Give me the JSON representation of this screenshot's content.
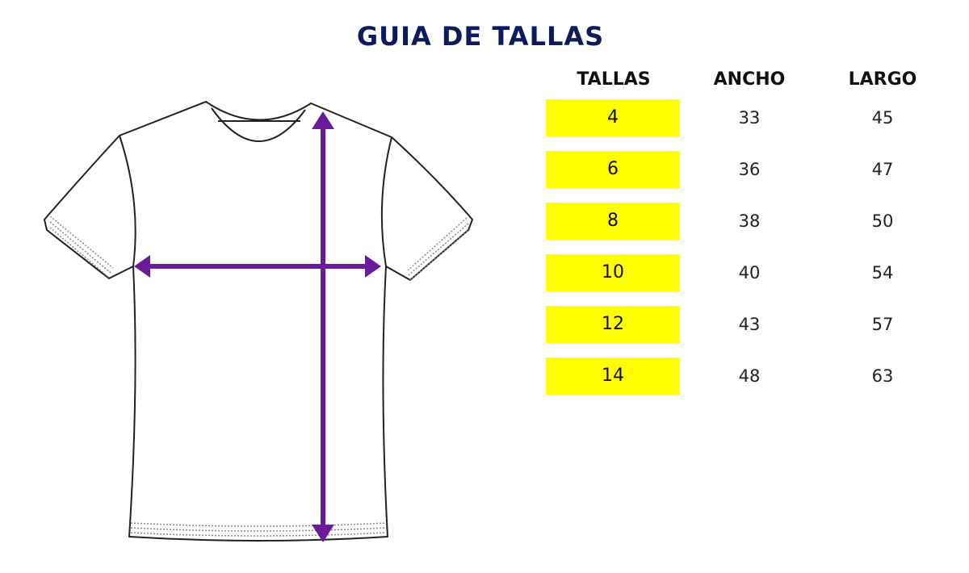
{
  "title": "GUIA DE TALLAS",
  "table": {
    "headers": [
      "TALLAS",
      "ANCHO",
      "LARGO"
    ],
    "rows": [
      {
        "talla": "4",
        "ancho": "33",
        "largo": "45"
      },
      {
        "talla": "6",
        "ancho": "36",
        "largo": "47"
      },
      {
        "talla": "8",
        "ancho": "38",
        "largo": "50"
      },
      {
        "talla": "10",
        "ancho": "40",
        "largo": "54"
      },
      {
        "talla": "12",
        "ancho": "43",
        "largo": "57"
      },
      {
        "talla": "14",
        "ancho": "48",
        "largo": "63"
      }
    ]
  },
  "colors": {
    "title": "#0d1a5c",
    "size_highlight": "#ffff00",
    "arrows": "#6a1b9a"
  },
  "illustration": {
    "icon": "t-shirt-icon",
    "measures": [
      "width-arrow",
      "length-arrow"
    ]
  }
}
